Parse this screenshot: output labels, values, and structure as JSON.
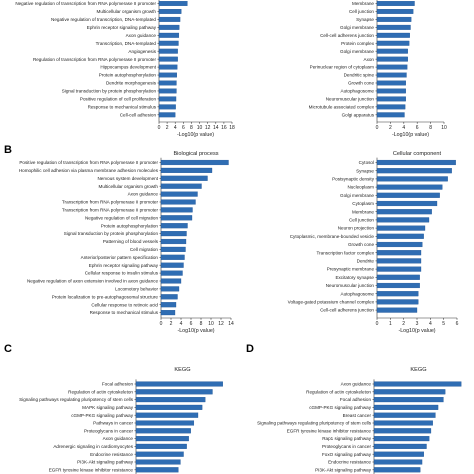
{
  "chart_data": [
    {
      "panel": "A-left",
      "type": "bar",
      "orientation": "horizontal",
      "title": "",
      "xlabel": "-Log10(p value)",
      "xlim": [
        0,
        18
      ],
      "xticks": [
        0,
        2,
        4,
        6,
        8,
        10,
        12,
        14,
        16,
        18
      ],
      "categories": [
        "Negative regulation of transcription from RNA polymerase II promoter",
        "Multicellular organism growth",
        "Negative regulation of transcription, DNA-templated",
        "Ephrin receptor signaling pathway",
        "Axon guidance",
        "Transcription, DNA-templated",
        "Angiogenesis",
        "Regulation of transcription from RNA polymerase II promoter",
        "Hippocampus development",
        "Protein autophosphorylation",
        "Dendrite morphogenesis",
        "Signal transduction by protein phosphorylation",
        "Positive regulation of cell proliferation",
        "Response to mechanical stimulus",
        "Cell-cell adhesion"
      ],
      "values": [
        7.0,
        5.5,
        5.2,
        5.0,
        4.9,
        4.8,
        4.6,
        4.6,
        4.5,
        4.4,
        4.3,
        4.3,
        4.2,
        4.1,
        4.0
      ]
    },
    {
      "panel": "A-right",
      "type": "bar",
      "orientation": "horizontal",
      "title": "",
      "xlabel": "-Log10(p value)",
      "xlim": [
        0,
        10
      ],
      "xticks": [
        0,
        2,
        4,
        6,
        8,
        10
      ],
      "categories": [
        "Membrane",
        "Cell junction",
        "Synapse",
        "Golgi membrane",
        "Cell-cell adherens junction",
        "Protein complex",
        "Golgi membrane",
        "Axon",
        "Perinuclear region of cytoplasm",
        "Dendritic spine",
        "Growth cone",
        "Autophagosome",
        "Neuromuscular junction",
        "Microtubule associated complex",
        "Golgi apparatus"
      ],
      "values": [
        5.6,
        5.4,
        5.1,
        5.0,
        4.9,
        4.8,
        4.6,
        4.6,
        4.5,
        4.4,
        4.3,
        4.3,
        4.3,
        4.2,
        4.1
      ]
    },
    {
      "panel": "B-left",
      "type": "bar",
      "orientation": "horizontal",
      "title": "Biological process",
      "xlabel": "-Log10(p value)",
      "xlim": [
        0,
        14
      ],
      "xticks": [
        0,
        2,
        4,
        6,
        8,
        10,
        12,
        14
      ],
      "categories": [
        "Positive regulation of transcription from RNA polymerase II promoter",
        "Homophilic cell adhesion via plasma membrane adhesion molecules",
        "Nervous system development",
        "Multicellular organism growth",
        "Axon guidance",
        "Transcription from RNA polymerase II promoter",
        "Transcription from RNA polymerase II promoter",
        "Negative regulation of cell migration",
        "Protein autophosphorylation",
        "Signal transduction by protein phosphorylation",
        "Patterning of blood vessels",
        "Cell migration",
        "Anterior/posterior pattern specification",
        "Ephrin receptor signaling pathway",
        "Cellular response to insulin stimulus",
        "Negative regulation of axon extension involved in axon guidance",
        "Locomotory behavior",
        "Protein localization to pre-autophagosomal structure",
        "Cellular response to retinoic acid",
        "Response to mechanical stimulus"
      ],
      "values": [
        13.5,
        10.2,
        9.3,
        8.1,
        7.3,
        6.9,
        6.3,
        6.2,
        5.3,
        5.1,
        5.0,
        4.9,
        4.7,
        4.5,
        4.3,
        4.0,
        3.6,
        3.3,
        3.0,
        2.8
      ]
    },
    {
      "panel": "B-right",
      "type": "bar",
      "orientation": "horizontal",
      "title": "Cellular component",
      "xlabel": "-Log10(p value)",
      "xlim": [
        0,
        6
      ],
      "xticks": [
        0,
        1,
        2,
        3,
        4,
        5,
        6
      ],
      "categories": [
        "Cytosol",
        "Synapse",
        "Postsynaptic density",
        "Nucleoplasm",
        "Golgi membrane",
        "Cytoplasm",
        "Membrane",
        "Cell junction",
        "Neuron projection",
        "Cytoplasmic, membrane-bounded vesicle",
        "Growth cone",
        "Transcription factor complex",
        "Dendrite",
        "Presynaptic membrane",
        "Excitatory synapse",
        "Neuromuscular junction",
        "Autophagosome",
        "Voltage-gated potassium channel complex",
        "Cell-cell adherens junction"
      ],
      "values": [
        5.9,
        5.6,
        5.3,
        4.9,
        4.7,
        4.5,
        4.1,
        3.9,
        3.6,
        3.5,
        3.4,
        3.3,
        3.3,
        3.3,
        3.2,
        3.2,
        3.1,
        3.1,
        3.0
      ]
    },
    {
      "panel": "C",
      "type": "bar",
      "orientation": "horizontal",
      "title": "KEGG",
      "categories": [
        "Focal adhesion",
        "Regulation of actin cytoskeleton",
        "Signaling pathways regulating pluripotency of stem cells",
        "MAPK signaling pathway",
        "cGMP-PKG signaling pathway",
        "Pathways in cancer",
        "Proteoglycans in cancer",
        "Axon guidance",
        "Adrenergic signaling in cardiomyocytes",
        "Endocrine resistance",
        "PI3K-Akt signaling pathway",
        "EGFR tyrosine kinase inhibitor resistance",
        "Neurotrophin signaling pathway",
        "Ras signaling pathway"
      ],
      "values": [
        8.4,
        7.4,
        6.7,
        6.4,
        6.0,
        5.6,
        5.3,
        5.1,
        4.9,
        4.6,
        4.3,
        4.1,
        4.0,
        3.8
      ]
    },
    {
      "panel": "D",
      "type": "bar",
      "orientation": "horizontal",
      "title": "KEGG",
      "categories": [
        "Axon guidance",
        "Regulation of actin cytoskeleton",
        "Focal adhesion",
        "cGMP-PKG signaling pathway",
        "Breast cancer",
        "Signaling pathways regulating pluripotency of stem cells",
        "EGFR tyrosine kinase inhibitor resistance",
        "Rap1 signaling pathway",
        "Proteoglycans in cancer",
        "FoxO signaling pathway",
        "Endocrine resistance",
        "PI3K-Akt signaling pathway",
        "Longevity regulating pathway-multiple species",
        "MAPK signaling pathway"
      ],
      "values": [
        9.8,
        8.0,
        7.8,
        7.2,
        6.9,
        6.6,
        6.4,
        6.2,
        5.9,
        5.6,
        5.4,
        5.2,
        5.1,
        4.8
      ]
    }
  ],
  "panel_labels": {
    "b": "B",
    "c": "C",
    "d": "D"
  },
  "colors": {
    "bar": "#2f6db3",
    "bar_edge": "#1a4f8f"
  }
}
